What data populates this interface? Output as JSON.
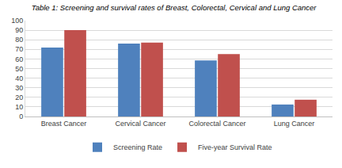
{
  "chart_data": {
    "type": "bar",
    "title": "Table 1: Screening and survival rates of Breast, Colorectal, Cervical and Lung Cancer",
    "categories": [
      "Breast Cancer",
      "Cervical Cancer",
      "Colorectal Cancer",
      "Lung Cancer"
    ],
    "series": [
      {
        "name": "Screening Rate",
        "color": "#4f81bd",
        "values": [
          72,
          76,
          58.5,
          12.5
        ]
      },
      {
        "name": "Five-year Survival Rate",
        "color": "#c0504d",
        "values": [
          90,
          77,
          65,
          17.5
        ]
      }
    ],
    "ylim": [
      0,
      100
    ],
    "yticks": [
      0,
      10,
      20,
      30,
      40,
      50,
      60,
      70,
      80,
      90,
      100
    ],
    "grid": true,
    "legend": "bottom"
  }
}
